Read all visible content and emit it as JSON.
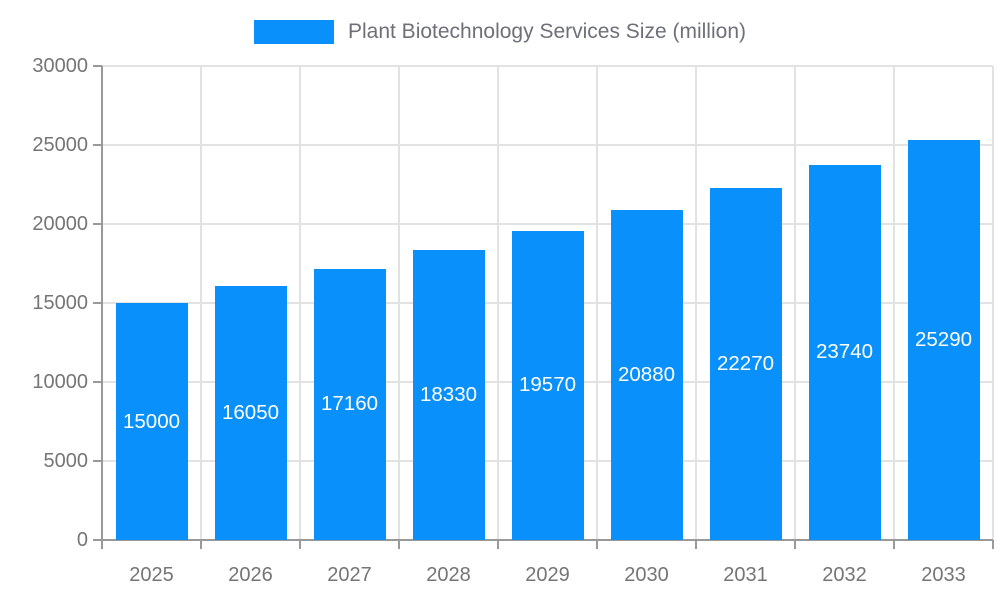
{
  "legend": {
    "label": "Plant Biotechnology Services Size (million)"
  },
  "chart_data": {
    "type": "bar",
    "title": "Plant Biotechnology Services Size (million)",
    "categories": [
      "2025",
      "2026",
      "2027",
      "2028",
      "2029",
      "2030",
      "2031",
      "2032",
      "2033"
    ],
    "values": [
      15000,
      16050,
      17160,
      18330,
      19570,
      20880,
      22270,
      23740,
      25290
    ],
    "xlabel": "",
    "ylabel": "",
    "ylim": [
      0,
      30000
    ],
    "yticks": [
      0,
      5000,
      10000,
      15000,
      20000,
      25000,
      30000
    ],
    "grid": true,
    "legend_position": "top-center",
    "value_labels_position": "inside-center",
    "colors": {
      "bar": "#0990FB",
      "value_label": "#FFFFFF",
      "axis": "#999999",
      "gridline": "#E2E2E2",
      "tick_label": "#757575",
      "legend_text": "#6E7079"
    }
  }
}
